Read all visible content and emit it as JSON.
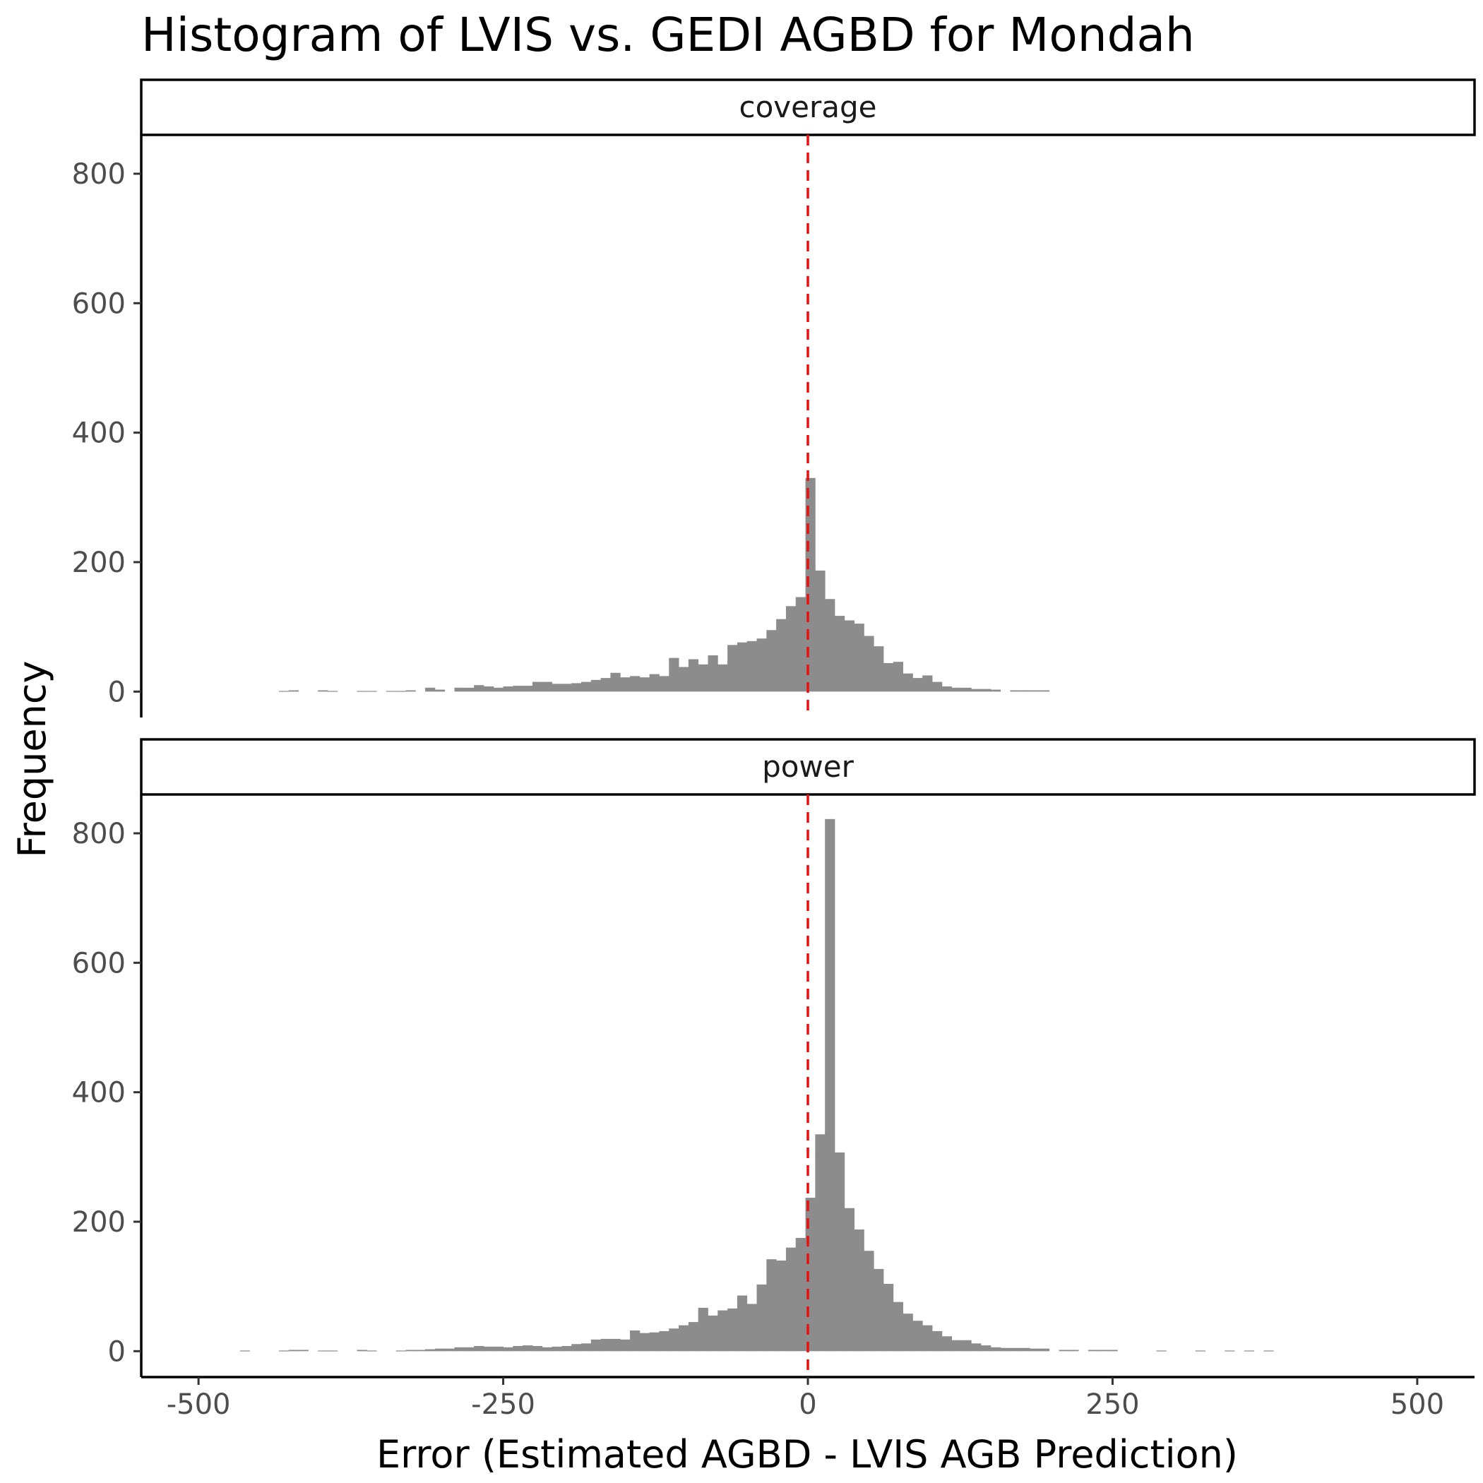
{
  "chart_data": {
    "type": "bar",
    "title": "Histogram of LVIS vs. GEDI AGBD for Mondah",
    "xlabel": "Error (Estimated AGBD - LVIS AGB Prediction)",
    "ylabel": "Frequency",
    "xlim": [
      -547,
      547
    ],
    "ylim": [
      -40,
      860
    ],
    "x_ticks": [
      -500,
      -250,
      0,
      250,
      500
    ],
    "x_tick_labels": [
      "-500",
      "-250",
      "0",
      "250",
      "500"
    ],
    "y_ticks": [
      0,
      200,
      400,
      600,
      800
    ],
    "y_tick_labels": [
      "0",
      "200",
      "400",
      "600",
      "800"
    ],
    "bin_width": 8,
    "reference_line": {
      "x": 0,
      "color": "#E8100F",
      "style": "dashed"
    },
    "bar_color": "#8C8C8C",
    "grid": false,
    "panels": [
      {
        "strip": "coverage",
        "bins": [
          [
            -430,
            1
          ],
          [
            -422,
            2
          ],
          [
            -398,
            2
          ],
          [
            -390,
            1
          ],
          [
            -366,
            1
          ],
          [
            -358,
            1
          ],
          [
            -342,
            1
          ],
          [
            -334,
            1
          ],
          [
            -326,
            2
          ],
          [
            -310,
            6
          ],
          [
            -302,
            3
          ],
          [
            -286,
            6
          ],
          [
            -278,
            6
          ],
          [
            -270,
            10
          ],
          [
            -262,
            8
          ],
          [
            -254,
            6
          ],
          [
            -246,
            8
          ],
          [
            -238,
            9
          ],
          [
            -230,
            9
          ],
          [
            -222,
            15
          ],
          [
            -214,
            15
          ],
          [
            -206,
            12
          ],
          [
            -198,
            12
          ],
          [
            -190,
            13
          ],
          [
            -182,
            15
          ],
          [
            -174,
            18
          ],
          [
            -166,
            21
          ],
          [
            -158,
            29
          ],
          [
            -150,
            22
          ],
          [
            -142,
            24
          ],
          [
            -134,
            22
          ],
          [
            -126,
            27
          ],
          [
            -118,
            24
          ],
          [
            -110,
            52
          ],
          [
            -102,
            38
          ],
          [
            -94,
            50
          ],
          [
            -86,
            42
          ],
          [
            -78,
            56
          ],
          [
            -70,
            42
          ],
          [
            -62,
            72
          ],
          [
            -54,
            76
          ],
          [
            -46,
            78
          ],
          [
            -38,
            82
          ],
          [
            -30,
            95
          ],
          [
            -22,
            112
          ],
          [
            -14,
            132
          ],
          [
            -6,
            146
          ],
          [
            2,
            330
          ],
          [
            10,
            187
          ],
          [
            18,
            143
          ],
          [
            26,
            117
          ],
          [
            34,
            110
          ],
          [
            42,
            105
          ],
          [
            50,
            86
          ],
          [
            58,
            70
          ],
          [
            66,
            44
          ],
          [
            74,
            46
          ],
          [
            82,
            28
          ],
          [
            90,
            21
          ],
          [
            98,
            25
          ],
          [
            106,
            15
          ],
          [
            114,
            8
          ],
          [
            122,
            6
          ],
          [
            130,
            6
          ],
          [
            138,
            4
          ],
          [
            146,
            4
          ],
          [
            154,
            3
          ],
          [
            170,
            2
          ],
          [
            178,
            2
          ],
          [
            186,
            2
          ],
          [
            194,
            2
          ]
        ]
      },
      {
        "strip": "power",
        "bins": [
          [
            -462,
            1
          ],
          [
            -430,
            1
          ],
          [
            -422,
            2
          ],
          [
            -414,
            2
          ],
          [
            -398,
            1
          ],
          [
            -390,
            1
          ],
          [
            -366,
            2
          ],
          [
            -358,
            1
          ],
          [
            -334,
            1
          ],
          [
            -326,
            2
          ],
          [
            -318,
            2
          ],
          [
            -310,
            3
          ],
          [
            -302,
            4
          ],
          [
            -294,
            4
          ],
          [
            -286,
            6
          ],
          [
            -278,
            6
          ],
          [
            -270,
            8
          ],
          [
            -262,
            7
          ],
          [
            -254,
            7
          ],
          [
            -246,
            6
          ],
          [
            -238,
            8
          ],
          [
            -230,
            9
          ],
          [
            -222,
            8
          ],
          [
            -214,
            6
          ],
          [
            -206,
            7
          ],
          [
            -198,
            8
          ],
          [
            -190,
            11
          ],
          [
            -182,
            12
          ],
          [
            -174,
            18
          ],
          [
            -166,
            19
          ],
          [
            -158,
            19
          ],
          [
            -150,
            18
          ],
          [
            -142,
            32
          ],
          [
            -134,
            28
          ],
          [
            -126,
            29
          ],
          [
            -118,
            31
          ],
          [
            -110,
            35
          ],
          [
            -102,
            40
          ],
          [
            -94,
            45
          ],
          [
            -86,
            67
          ],
          [
            -78,
            55
          ],
          [
            -70,
            63
          ],
          [
            -62,
            66
          ],
          [
            -54,
            86
          ],
          [
            -46,
            73
          ],
          [
            -38,
            103
          ],
          [
            -30,
            142
          ],
          [
            -22,
            140
          ],
          [
            -14,
            160
          ],
          [
            -6,
            175
          ],
          [
            2,
            237
          ],
          [
            10,
            335
          ],
          [
            18,
            822
          ],
          [
            26,
            307
          ],
          [
            34,
            221
          ],
          [
            42,
            188
          ],
          [
            50,
            155
          ],
          [
            58,
            127
          ],
          [
            66,
            104
          ],
          [
            74,
            76
          ],
          [
            82,
            58
          ],
          [
            90,
            47
          ],
          [
            98,
            40
          ],
          [
            106,
            31
          ],
          [
            114,
            23
          ],
          [
            122,
            17
          ],
          [
            130,
            17
          ],
          [
            138,
            12
          ],
          [
            146,
            9
          ],
          [
            154,
            6
          ],
          [
            162,
            5
          ],
          [
            170,
            5
          ],
          [
            178,
            5
          ],
          [
            186,
            4
          ],
          [
            194,
            4
          ],
          [
            210,
            2
          ],
          [
            218,
            2
          ],
          [
            234,
            2
          ],
          [
            242,
            2
          ],
          [
            250,
            2
          ],
          [
            290,
            1
          ],
          [
            322,
            1
          ],
          [
            346,
            1
          ],
          [
            362,
            1
          ],
          [
            378,
            1
          ]
        ]
      }
    ]
  }
}
